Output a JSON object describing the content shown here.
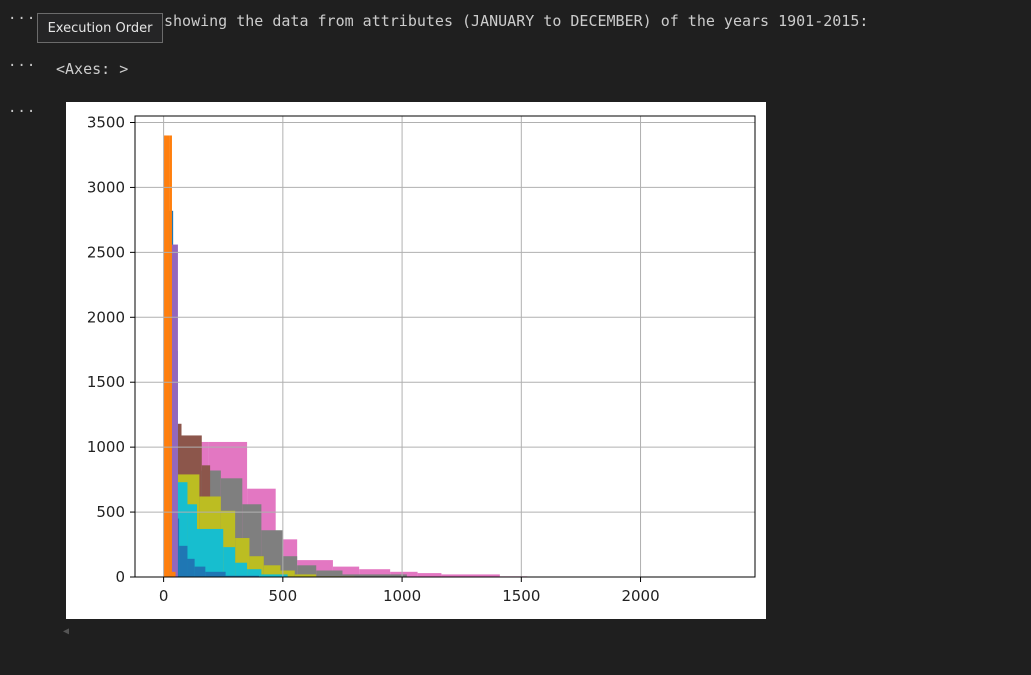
{
  "cells": [
    {
      "gutter": "···",
      "text": "showing the data from attributes (JANUARY to DECEMBER) of the years 1901-2015:"
    },
    {
      "gutter": "···",
      "text": "<Axes: >"
    },
    {
      "gutter": "···"
    }
  ],
  "tooltip": {
    "label": "Execution Order"
  },
  "colors": {
    "background": "#1f1f1f",
    "plot_bg": "#ffffff",
    "grid": "#b0b0b0"
  },
  "chart_data": {
    "type": "bar",
    "title": "",
    "xlabel": "",
    "ylabel": "",
    "xlim": [
      -120,
      2480
    ],
    "ylim": [
      0,
      3550
    ],
    "xticks": [
      0,
      500,
      1000,
      1500,
      2000
    ],
    "yticks": [
      0,
      500,
      1000,
      1500,
      2000,
      2500,
      3000,
      3500
    ],
    "grid": true,
    "legend": "none",
    "series": [
      {
        "color": "#e377c2",
        "bins": [
          [
            45,
            80,
            1070
          ],
          [
            80,
            115,
            1040
          ],
          [
            115,
            190,
            1040
          ],
          [
            190,
            350,
            1040
          ],
          [
            350,
            470,
            680
          ],
          [
            470,
            560,
            290
          ],
          [
            560,
            710,
            130
          ],
          [
            710,
            820,
            80
          ],
          [
            820,
            950,
            60
          ],
          [
            950,
            1065,
            40
          ],
          [
            1065,
            1165,
            30
          ],
          [
            1165,
            1410,
            20
          ],
          [
            1410,
            1525,
            5
          ]
        ]
      },
      {
        "color": "#7f7f7f",
        "bins": [
          [
            50,
            110,
            860
          ],
          [
            110,
            240,
            820
          ],
          [
            240,
            330,
            760
          ],
          [
            330,
            410,
            560
          ],
          [
            410,
            500,
            360
          ],
          [
            500,
            560,
            160
          ],
          [
            560,
            640,
            90
          ],
          [
            640,
            750,
            50
          ],
          [
            750,
            1020,
            20
          ]
        ]
      },
      {
        "color": "#8c564b",
        "bins": [
          [
            48,
            75,
            1180
          ],
          [
            75,
            160,
            1090
          ],
          [
            160,
            195,
            860
          ]
        ]
      },
      {
        "color": "#bcbd22",
        "bins": [
          [
            60,
            150,
            790
          ],
          [
            150,
            240,
            620
          ],
          [
            240,
            300,
            510
          ],
          [
            300,
            360,
            300
          ],
          [
            360,
            420,
            160
          ],
          [
            420,
            490,
            90
          ],
          [
            490,
            550,
            50
          ],
          [
            550,
            640,
            20
          ],
          [
            640,
            800,
            5
          ]
        ]
      },
      {
        "color": "#17becf",
        "bins": [
          [
            40,
            60,
            1740
          ],
          [
            55,
            100,
            730
          ],
          [
            100,
            140,
            560
          ],
          [
            140,
            250,
            370
          ],
          [
            250,
            300,
            230
          ],
          [
            300,
            350,
            110
          ],
          [
            350,
            410,
            60
          ],
          [
            410,
            520,
            20
          ]
        ]
      },
      {
        "color": "#1f77b4",
        "bins": [
          [
            25,
            40,
            2820
          ],
          [
            40,
            65,
            450
          ],
          [
            65,
            100,
            240
          ],
          [
            100,
            130,
            140
          ],
          [
            130,
            175,
            80
          ],
          [
            175,
            260,
            40
          ],
          [
            260,
            400,
            10
          ]
        ]
      },
      {
        "color": "#9467bd",
        "bins": [
          [
            28,
            60,
            2560
          ]
        ]
      },
      {
        "color": "#ff7f0e",
        "bins": [
          [
            0,
            25,
            3400
          ],
          [
            25,
            35,
            3400
          ],
          [
            35,
            50,
            40
          ]
        ]
      }
    ]
  }
}
